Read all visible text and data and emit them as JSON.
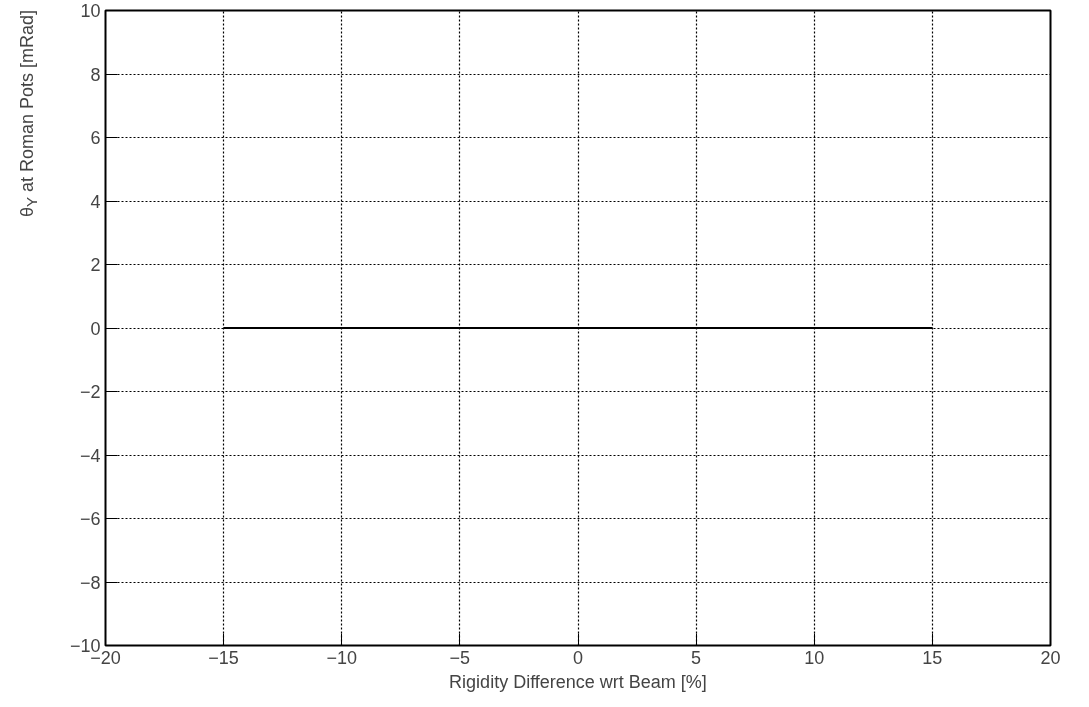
{
  "chart_data": {
    "type": "line",
    "xlabel": "Rigidity Difference wrt Beam [%]",
    "ylabel": "θ$_{Y}$ at Roman Pots [mRad]",
    "x": [
      -15,
      15
    ],
    "series": [
      {
        "color": "#000000",
        "values": [
          0,
          0
        ]
      }
    ],
    "xlim": [
      -20,
      20
    ],
    "ylim": [
      -10,
      10
    ],
    "xticks": [
      {
        "value": -20,
        "label": "−20"
      },
      {
        "value": -15,
        "label": "−15"
      },
      {
        "value": -10,
        "label": "−10"
      },
      {
        "value": -5,
        "label": "−5"
      },
      0,
      5,
      10,
      15,
      20
    ],
    "yticks": [
      {
        "value": -10,
        "label": "−10"
      },
      {
        "value": -8,
        "label": "−8"
      },
      {
        "value": -6,
        "label": "−6"
      },
      {
        "value": -4,
        "label": "−4"
      },
      {
        "value": -2,
        "label": "−2"
      },
      0,
      2,
      4,
      6,
      8,
      10
    ],
    "grid": true,
    "marker": "none",
    "line_style": "solid"
  }
}
